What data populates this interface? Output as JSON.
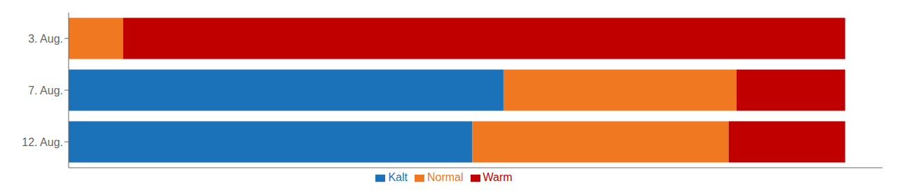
{
  "chart_data": {
    "type": "bar",
    "orientation": "horizontal",
    "stacked": true,
    "categories": [
      "12. Aug.",
      "7. Aug.",
      "3. Aug."
    ],
    "series": [
      {
        "name": "Kalt",
        "color": "#1B72B8",
        "values": [
          52,
          56,
          0
        ]
      },
      {
        "name": "Normal",
        "color": "#F07820",
        "values": [
          33,
          30,
          7
        ]
      },
      {
        "name": "Warm",
        "color": "#C00000",
        "values": [
          15,
          14,
          93
        ]
      }
    ],
    "xlim": [
      0,
      104.8
    ],
    "xticks": [],
    "grid": false,
    "legend": "bottom",
    "tick_labels": "y"
  }
}
